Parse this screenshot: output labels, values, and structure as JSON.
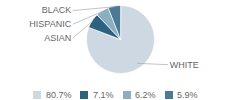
{
  "chart_data": {
    "type": "pie",
    "categories": [
      "WHITE",
      "ASIAN",
      "HISPANIC",
      "BLACK"
    ],
    "values": [
      80.7,
      7.1,
      6.2,
      5.9
    ],
    "value_labels": [
      "80.7%",
      "7.1%",
      "6.2%",
      "5.9%"
    ],
    "colors": [
      "#cdd8e3",
      "#2e6080",
      "#8aafc0",
      "#4a7a94"
    ],
    "legend": "bottom"
  }
}
